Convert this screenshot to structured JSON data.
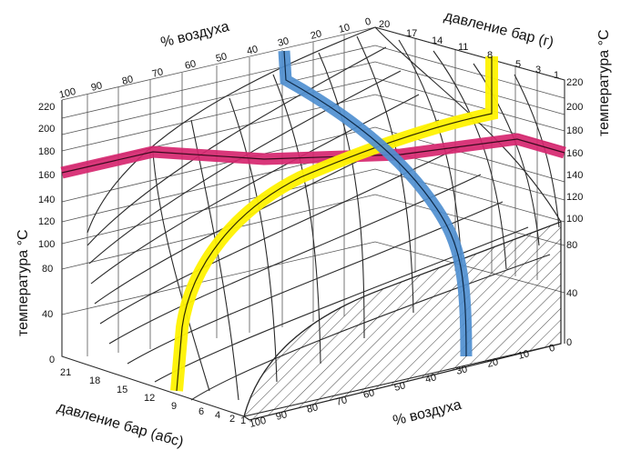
{
  "labels": {
    "air_top": "% воздуха",
    "air_bottom": "% воздуха",
    "pressure_gauge": "давление бар (г)",
    "pressure_abs": "давление бар (абс)",
    "temp_left": "температура °C",
    "temp_right": "температура °C"
  },
  "ticks": {
    "air_top": [
      "100",
      "90",
      "80",
      "70",
      "60",
      "50",
      "40",
      "30",
      "20",
      "10",
      "0"
    ],
    "gauge_top": [
      "20",
      "17",
      "14",
      "11",
      "8",
      "5",
      "3",
      "1"
    ],
    "temp_left": [
      "220",
      "200",
      "180",
      "160",
      "140",
      "120",
      "100",
      "80",
      "40",
      "0"
    ],
    "temp_right": [
      "220",
      "200",
      "180",
      "160",
      "140",
      "120",
      "100",
      "80",
      "40",
      "0"
    ],
    "abs_bottom": [
      "21",
      "18",
      "15",
      "12",
      "9",
      "6",
      "4",
      "2",
      "1"
    ],
    "air_bottom": [
      "100",
      "90",
      "80",
      "70",
      "60",
      "50",
      "40",
      "30",
      "20",
      "10",
      "0"
    ]
  },
  "highlights": [
    {
      "name": "temperature-band",
      "color": "#d6266f"
    },
    {
      "name": "pressure-band",
      "color": "#fff200"
    },
    {
      "name": "air-band",
      "color": "#4f8fd0"
    }
  ]
}
